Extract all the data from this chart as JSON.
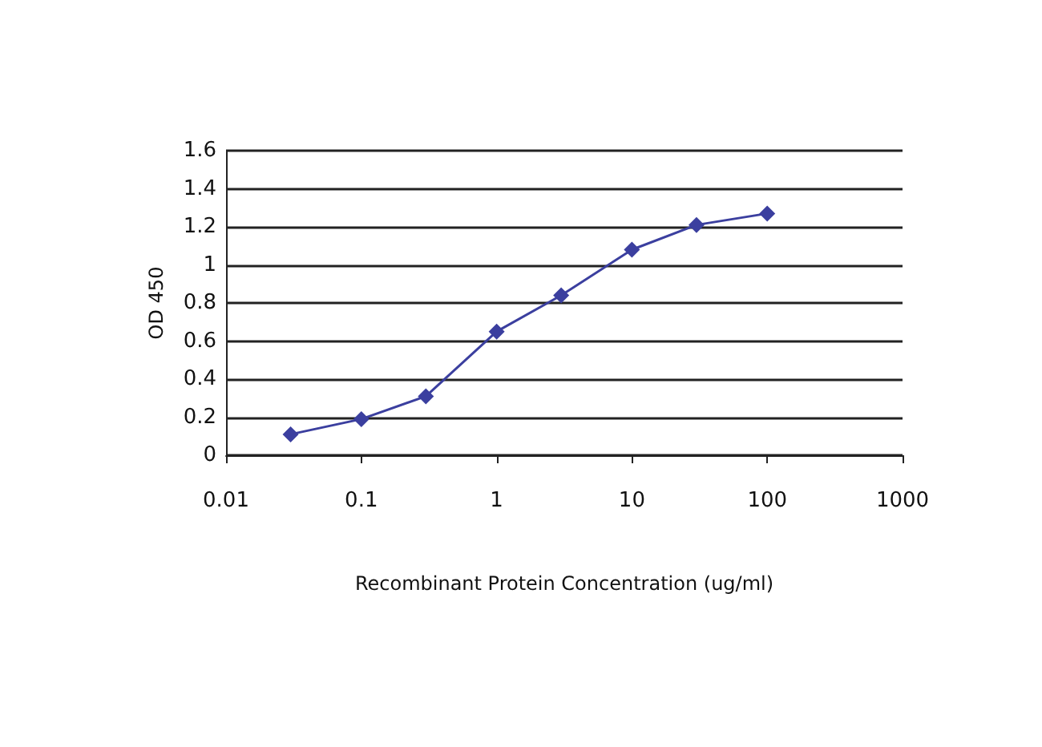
{
  "chart_data": {
    "type": "line",
    "xlabel": "Recombinant Protein Concentration (ug/ml)",
    "ylabel": "OD 450",
    "x": [
      0.03,
      0.1,
      0.3,
      1,
      3,
      10,
      30,
      100
    ],
    "series": [
      {
        "color": "#3b3f9f",
        "values": [
          0.11,
          0.19,
          0.31,
          0.65,
          0.84,
          1.08,
          1.21,
          1.27
        ]
      }
    ],
    "log": "x",
    "xlim": [
      0.01,
      1000
    ],
    "xticks": [
      0.01,
      0.1,
      1,
      10,
      100,
      1000
    ],
    "ylim": [
      0,
      1.6
    ],
    "yticks": [
      0,
      0.2,
      0.4,
      0.6,
      0.8,
      1,
      1.2,
      1.4,
      1.6
    ],
    "grid": "y",
    "marker": "diamond",
    "line_style": "solid"
  }
}
